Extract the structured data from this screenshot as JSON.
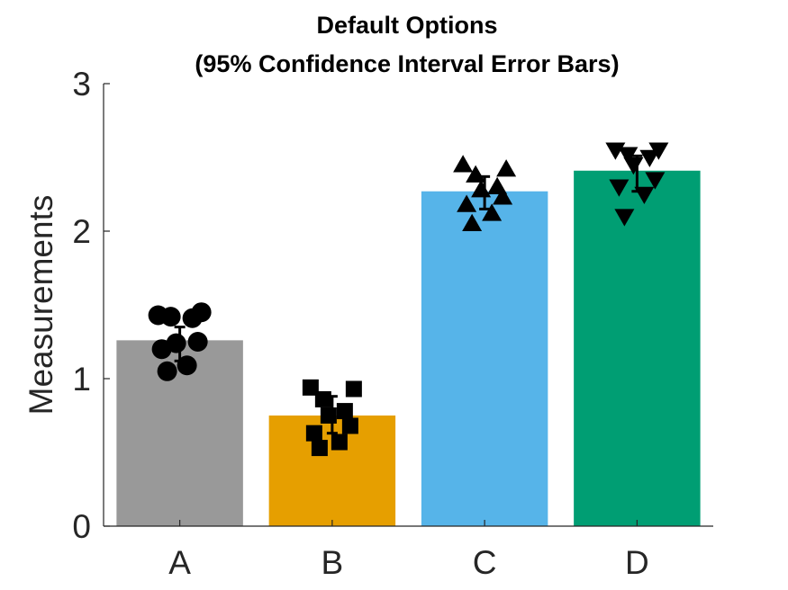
{
  "chart_data": {
    "type": "bar",
    "title_lines": [
      "Default Options",
      "(95% Confidence Interval Error Bars)"
    ],
    "xlabel": "",
    "ylabel": "Measurements",
    "categories": [
      "A",
      "B",
      "C",
      "D"
    ],
    "values": [
      1.26,
      0.75,
      2.27,
      2.41
    ],
    "bar_colors": [
      "#999999",
      "#E69F00",
      "#56B4E9",
      "#009E73"
    ],
    "error_bars": [
      {
        "low": 1.12,
        "high": 1.35
      },
      {
        "low": 0.63,
        "high": 0.88
      },
      {
        "low": 2.15,
        "high": 2.37
      },
      {
        "low": 2.27,
        "high": 2.51
      }
    ],
    "points": [
      {
        "marker": "circle",
        "values": [
          1.05,
          1.09,
          1.2,
          1.25,
          1.24,
          1.41,
          1.42,
          1.45,
          1.43
        ]
      },
      {
        "marker": "square",
        "values": [
          0.53,
          0.57,
          0.63,
          0.68,
          0.75,
          0.78,
          0.86,
          0.93,
          0.94
        ]
      },
      {
        "marker": "triangle-up",
        "values": [
          2.05,
          2.12,
          2.18,
          2.23,
          2.28,
          2.3,
          2.38,
          2.42,
          2.45
        ]
      },
      {
        "marker": "triangle-down",
        "values": [
          2.1,
          2.25,
          2.3,
          2.35,
          2.45,
          2.5,
          2.52,
          2.55,
          2.55
        ]
      }
    ],
    "ylim": [
      0,
      3
    ],
    "yticks": [
      0,
      1,
      2,
      3
    ],
    "marker_color": "#000000",
    "grid": false,
    "legend": "none"
  }
}
